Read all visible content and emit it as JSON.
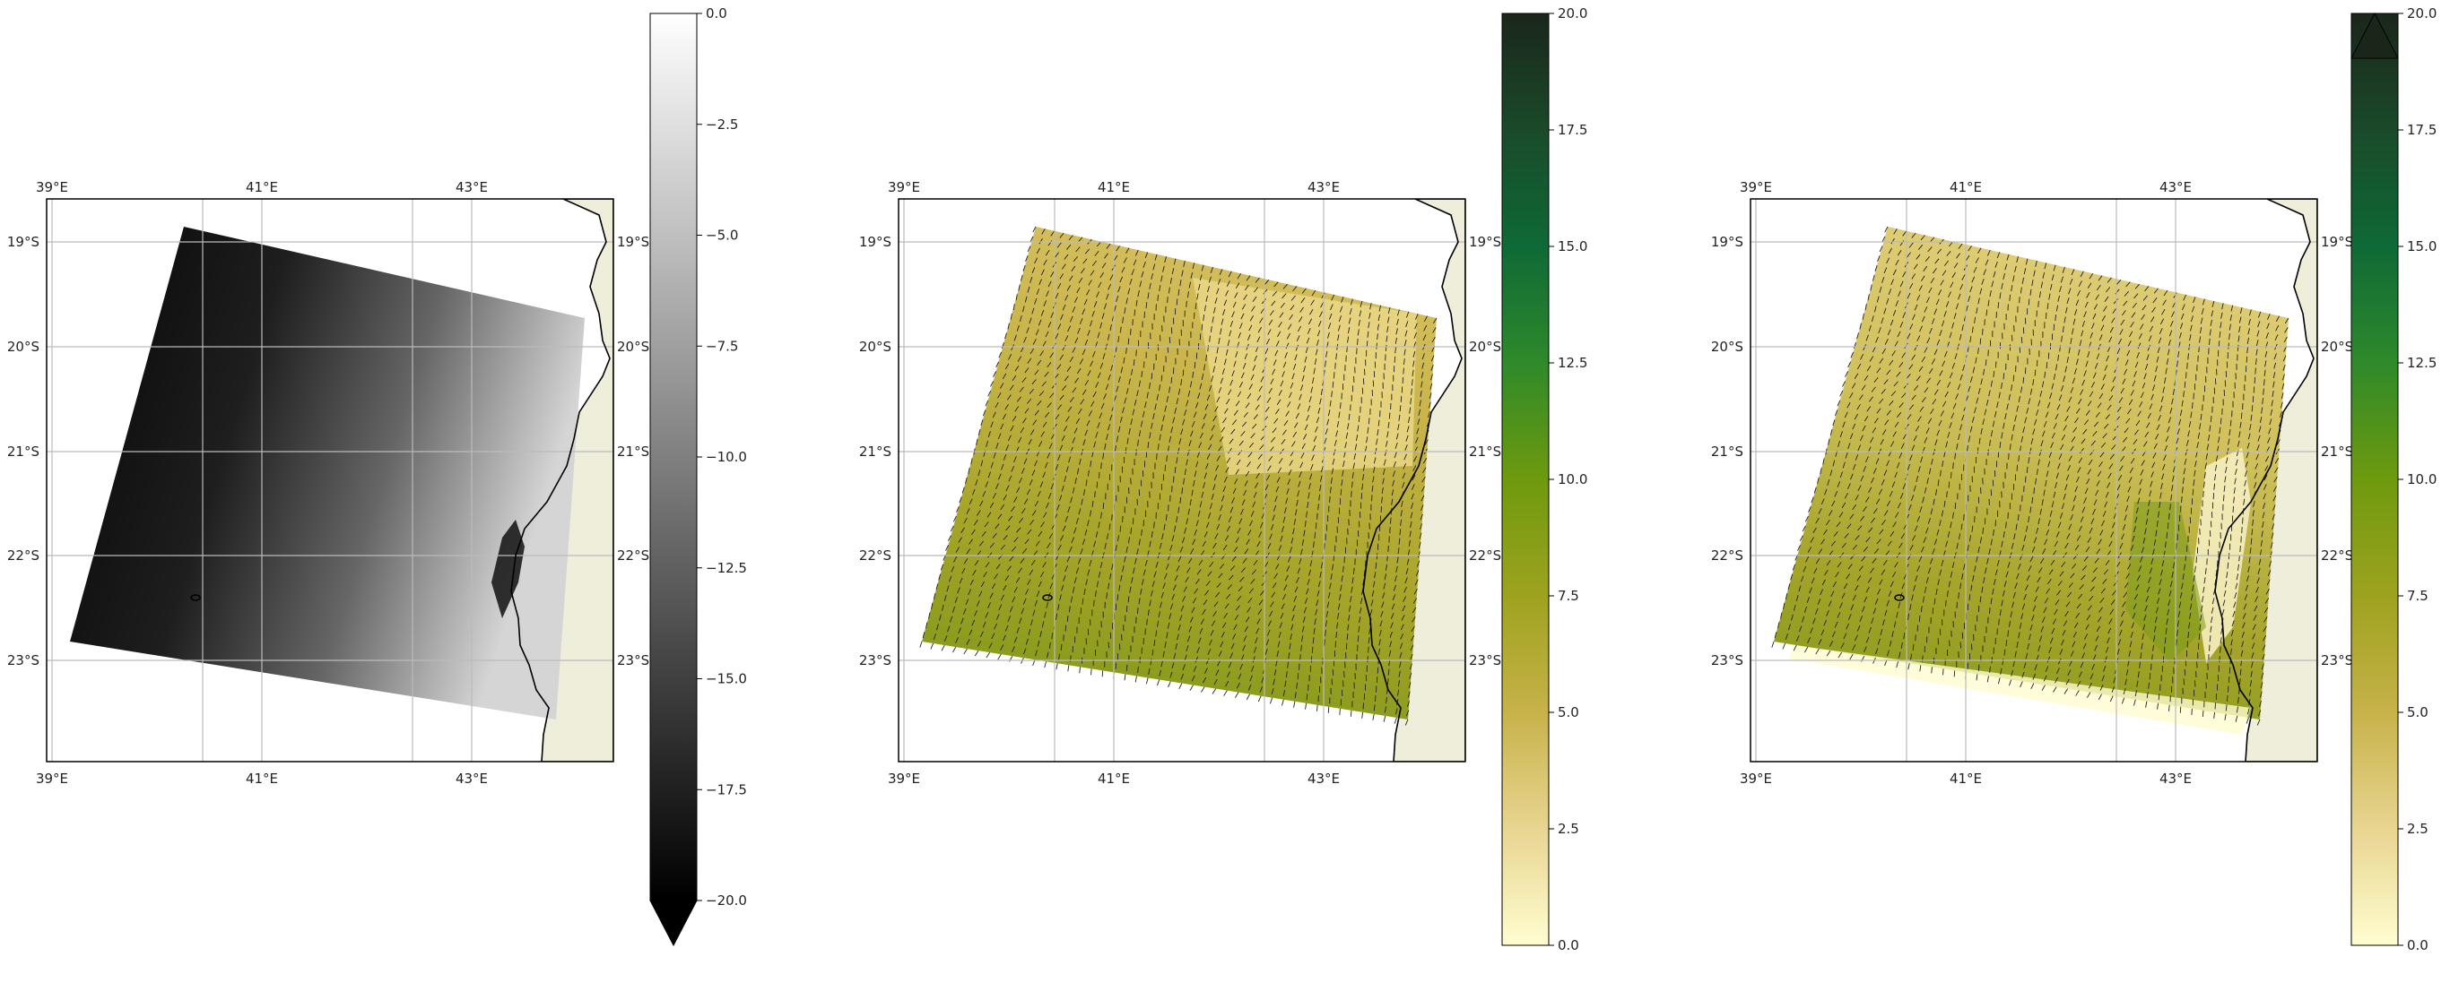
{
  "panels": [
    {
      "name": "sigma0-panel",
      "type": "grayscale",
      "lon_labels": [
        "39°E",
        "41°E",
        "43°E"
      ],
      "lat_labels": [
        "19°S",
        "20°S",
        "21°S",
        "22°S",
        "23°S"
      ],
      "colorbar": {
        "ticks": [
          "0.0",
          "−2.5",
          "−5.0",
          "−7.5",
          "−10.0",
          "−12.5",
          "−15.0",
          "−17.5",
          "−20.0"
        ],
        "range": [
          -20,
          0
        ],
        "extend": "min",
        "colors": [
          "#000000",
          "#ffffff"
        ]
      }
    },
    {
      "name": "model-wind-panel",
      "type": "wind",
      "lon_labels": [
        "39°E",
        "41°E",
        "43°E"
      ],
      "lat_labels": [
        "19°S",
        "20°S",
        "21°S",
        "22°S",
        "23°S"
      ],
      "colorbar": {
        "ticks": [
          "0.0",
          "2.5",
          "5.0",
          "7.5",
          "10.0",
          "12.5",
          "15.0",
          "17.5",
          "20.0"
        ],
        "range": [
          0,
          20
        ],
        "extend": "none",
        "colors": [
          "#fffdd0",
          "#e8d590",
          "#c7b24a",
          "#9ea21e",
          "#6e9a0e",
          "#2e8a2a",
          "#0e6a36",
          "#1a4a2a",
          "#1a261a"
        ]
      }
    },
    {
      "name": "sar-wind-panel",
      "type": "wind",
      "lon_labels": [
        "39°E",
        "41°E",
        "43°E"
      ],
      "lat_labels": [
        "19°S",
        "20°S",
        "21°S",
        "22°S",
        "23°S"
      ],
      "colorbar": {
        "ticks": [
          "0.0",
          "2.5",
          "5.0",
          "7.5",
          "10.0",
          "12.5",
          "15.0",
          "17.5",
          "20.0"
        ],
        "range": [
          0,
          20
        ],
        "extend": "max",
        "colors": [
          "#fffdd0",
          "#e8d590",
          "#c7b24a",
          "#9ea21e",
          "#6e9a0e",
          "#2e8a2a",
          "#0e6a36",
          "#1a4a2a",
          "#1a261a"
        ]
      }
    }
  ],
  "land_color": "#efeedb"
}
